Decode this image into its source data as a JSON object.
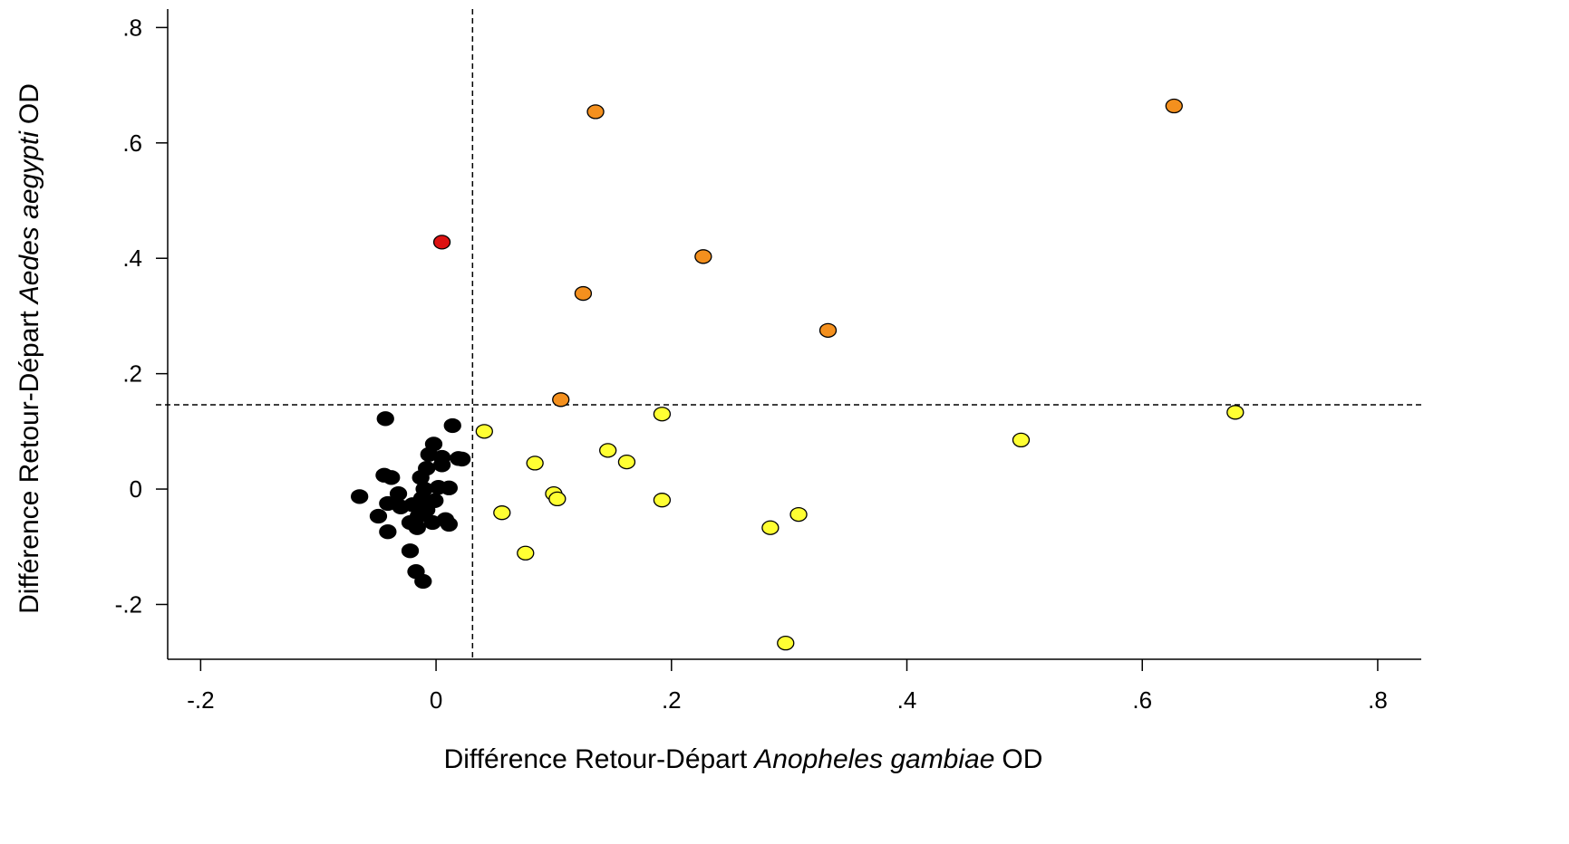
{
  "chart_data": {
    "type": "scatter",
    "xlabel": {
      "prefix": "Différence Retour-Départ",
      "species": "Anopheles gambiae",
      "suffix": "OD"
    },
    "ylabel": {
      "prefix": "Différence Retour-Départ",
      "species": "Aedes aegypti",
      "suffix": "OD"
    },
    "xlim": [
      -0.228,
      0.837
    ],
    "ylim": [
      -0.295,
      0.832
    ],
    "xticks": [
      {
        "value": -0.2,
        "label": "-.2"
      },
      0,
      {
        "value": 0.2,
        "label": ".2"
      },
      {
        "value": 0.4,
        "label": ".4"
      },
      {
        "value": 0.6,
        "label": ".6"
      },
      {
        "value": 0.8,
        "label": ".8"
      }
    ],
    "yticks": [
      {
        "value": -0.2,
        "label": "-.2"
      },
      0,
      {
        "value": 0.2,
        "label": ".2"
      },
      {
        "value": 0.4,
        "label": ".4"
      },
      {
        "value": 0.6,
        "label": ".6"
      },
      {
        "value": 0.8,
        "label": ".8"
      }
    ],
    "reference_lines": {
      "x": 0.031,
      "y": 0.146
    },
    "series": [
      {
        "color": "#000000",
        "x": [
          -0.043,
          0.014,
          -0.002,
          -0.006,
          0.005,
          0.019,
          0.022,
          0.005,
          -0.008,
          -0.044,
          -0.038,
          -0.013,
          0.002,
          0.011,
          -0.01,
          -0.065,
          -0.032,
          -0.012,
          -0.001,
          -0.041,
          -0.03,
          -0.02,
          -0.008,
          -0.049,
          -0.015,
          0.008,
          -0.003,
          0.011,
          -0.022,
          -0.016,
          -0.041,
          -0.022,
          -0.017,
          -0.011
        ],
        "y": [
          0.122,
          0.11,
          0.078,
          0.06,
          0.055,
          0.053,
          0.052,
          0.042,
          0.036,
          0.024,
          0.02,
          0.02,
          0.003,
          0.002,
          0.0,
          -0.013,
          -0.008,
          -0.016,
          -0.02,
          -0.025,
          -0.031,
          -0.027,
          -0.036,
          -0.047,
          -0.047,
          -0.053,
          -0.058,
          -0.061,
          -0.058,
          -0.067,
          -0.074,
          -0.107,
          -0.143,
          -0.16
        ]
      },
      {
        "color": "#ffff33",
        "x": [
          0.041,
          0.192,
          0.679,
          0.497,
          0.146,
          0.162,
          0.084,
          0.1,
          0.103,
          0.192,
          0.056,
          0.308,
          0.284,
          0.076,
          0.297
        ],
        "y": [
          0.1,
          0.13,
          0.133,
          0.085,
          0.067,
          0.047,
          0.045,
          -0.008,
          -0.017,
          -0.019,
          -0.041,
          -0.044,
          -0.067,
          -0.111,
          -0.267
        ]
      },
      {
        "color": "#f4901e",
        "x": [
          0.1355,
          0.627,
          0.227,
          0.125,
          0.333,
          0.106
        ],
        "y": [
          0.654,
          0.664,
          0.403,
          0.339,
          0.275,
          0.155
        ]
      },
      {
        "color": "#dd1111",
        "x": [
          0.005
        ],
        "y": [
          0.428
        ]
      }
    ]
  }
}
